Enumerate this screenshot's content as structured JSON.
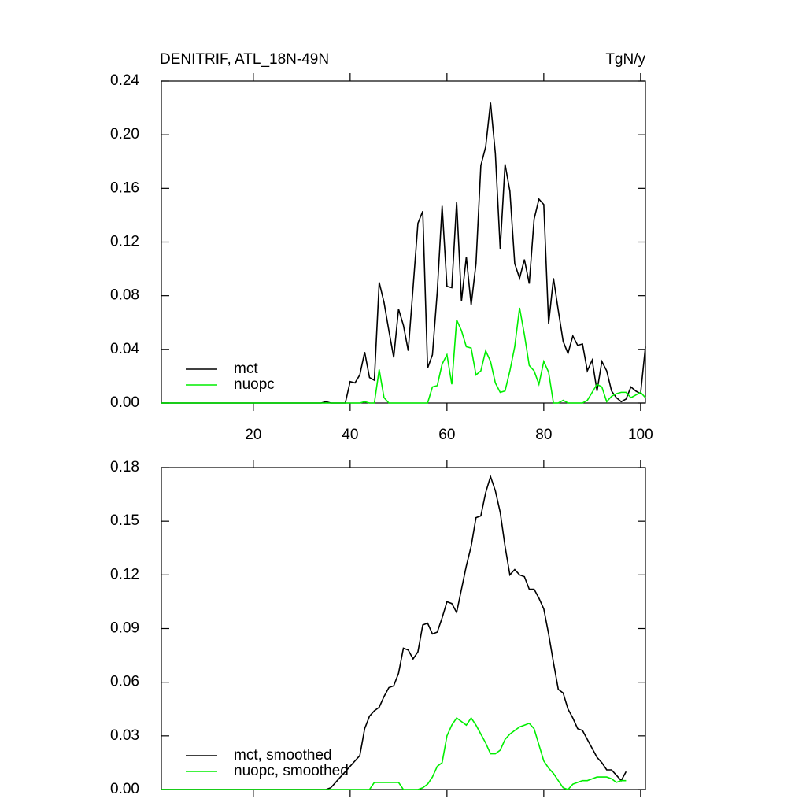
{
  "chart_data": [
    {
      "type": "line",
      "title": "DENITRIF, ATL_18N-49N",
      "units": "TgN/y",
      "x": [
        1,
        2,
        3,
        4,
        5,
        6,
        7,
        8,
        9,
        10,
        11,
        12,
        13,
        14,
        15,
        16,
        17,
        18,
        19,
        20,
        21,
        22,
        23,
        24,
        25,
        26,
        27,
        28,
        29,
        30,
        31,
        32,
        33,
        34,
        35,
        36,
        37,
        38,
        39,
        40,
        41,
        42,
        43,
        44,
        45,
        46,
        47,
        48,
        49,
        50,
        51,
        52,
        53,
        54,
        55,
        56,
        57,
        58,
        59,
        60,
        61,
        62,
        63,
        64,
        65,
        66,
        67,
        68,
        69,
        70,
        71,
        72,
        73,
        74,
        75,
        76,
        77,
        78,
        79,
        80,
        81,
        82,
        83,
        84,
        85,
        86,
        87,
        88,
        89,
        90,
        91,
        92,
        93,
        94,
        95,
        96,
        97,
        98,
        99,
        100,
        101
      ],
      "series": [
        {
          "name": "mct",
          "color": "#000000",
          "values": [
            0,
            0,
            0,
            0,
            0,
            0,
            0,
            0,
            0,
            0,
            0,
            0,
            0,
            0,
            0,
            0,
            0,
            0,
            0,
            0,
            0,
            0,
            0,
            0,
            0,
            0,
            0,
            0,
            0,
            0,
            0,
            0,
            0,
            0,
            0.001,
            0,
            0,
            0,
            0,
            0.016,
            0.015,
            0.021,
            0.038,
            0.019,
            0.017,
            0.09,
            0.075,
            0.054,
            0.034,
            0.07,
            0.058,
            0.039,
            0.086,
            0.134,
            0.143,
            0.026,
            0.036,
            0.083,
            0.147,
            0.087,
            0.086,
            0.15,
            0.076,
            0.109,
            0.073,
            0.104,
            0.177,
            0.191,
            0.224,
            0.186,
            0.115,
            0.178,
            0.158,
            0.104,
            0.093,
            0.107,
            0.089,
            0.137,
            0.152,
            0.148,
            0.059,
            0.093,
            0.069,
            0.046,
            0.037,
            0.05,
            0.043,
            0.044,
            0.024,
            0.032,
            0.009,
            0.031,
            0.024,
            0.009,
            0.004,
            0.001,
            0.003,
            0.012,
            0.009,
            0.007,
            0.042
          ]
        },
        {
          "name": "nuopc",
          "color": "#00ee00",
          "values": [
            0,
            0,
            0,
            0,
            0,
            0,
            0,
            0,
            0,
            0,
            0,
            0,
            0,
            0,
            0,
            0,
            0,
            0,
            0,
            0,
            0,
            0,
            0,
            0,
            0,
            0,
            0,
            0,
            0,
            0,
            0,
            0,
            0,
            0,
            0,
            0,
            0,
            0,
            0,
            0,
            0,
            0,
            0.001,
            0,
            0,
            0.025,
            0.004,
            0,
            0,
            0,
            0,
            0,
            0,
            0,
            0,
            0,
            0.012,
            0.013,
            0.029,
            0.036,
            0.014,
            0.062,
            0.054,
            0.042,
            0.041,
            0.021,
            0.024,
            0.039,
            0.031,
            0.015,
            0.008,
            0.009,
            0.024,
            0.042,
            0.071,
            0.051,
            0.028,
            0.024,
            0.014,
            0.031,
            0.023,
            0,
            0,
            0.002,
            0,
            0,
            0,
            0,
            0.002,
            0.008,
            0.014,
            0.012,
            0.001,
            0.005,
            0.007,
            0.008,
            0.008,
            0.004,
            0.006,
            0.008,
            0.004
          ]
        }
      ],
      "xlim": [
        1,
        101
      ],
      "xticks": [
        20,
        40,
        60,
        80,
        100
      ],
      "ylim": [
        0,
        0.24
      ],
      "yticks": [
        {
          "value": 0,
          "label": "0.00"
        },
        {
          "value": 0.04,
          "label": "0.04"
        },
        {
          "value": 0.08,
          "label": "0.08"
        },
        {
          "value": 0.12,
          "label": "0.12"
        },
        {
          "value": 0.16,
          "label": "0.16"
        },
        {
          "value": 0.2,
          "label": "0.20"
        },
        {
          "value": 0.24,
          "label": "0.24"
        }
      ],
      "legend": "lower left"
    },
    {
      "type": "line",
      "x": [
        1,
        2,
        3,
        4,
        5,
        6,
        7,
        8,
        9,
        10,
        11,
        12,
        13,
        14,
        15,
        16,
        17,
        18,
        19,
        20,
        21,
        22,
        23,
        24,
        25,
        26,
        27,
        28,
        29,
        30,
        31,
        32,
        33,
        34,
        35,
        36,
        37,
        38,
        39,
        40,
        41,
        42,
        43,
        44,
        45,
        46,
        47,
        48,
        49,
        50,
        51,
        52,
        53,
        54,
        55,
        56,
        57,
        58,
        59,
        60,
        61,
        62,
        63,
        64,
        65,
        66,
        67,
        68,
        69,
        70,
        71,
        72,
        73,
        74,
        75,
        76,
        77,
        78,
        79,
        80,
        81,
        82,
        83,
        84,
        85,
        86,
        87,
        88,
        89,
        90,
        91,
        92,
        93,
        94,
        95,
        96,
        97
      ],
      "series": [
        {
          "name": "mct, smoothed",
          "color": "#000000",
          "values": [
            0,
            0,
            0,
            0,
            0,
            0,
            0,
            0,
            0,
            0,
            0,
            0,
            0,
            0,
            0,
            0,
            0,
            0,
            0,
            0,
            0,
            0,
            0,
            0,
            0,
            0,
            0,
            0,
            0,
            0,
            0,
            0,
            0,
            0,
            0,
            0.001,
            0.004,
            0.007,
            0.01,
            0.013,
            0.016,
            0.019,
            0.034,
            0.041,
            0.044,
            0.046,
            0.052,
            0.057,
            0.058,
            0.065,
            0.079,
            0.078,
            0.073,
            0.077,
            0.092,
            0.093,
            0.087,
            0.088,
            0.096,
            0.105,
            0.104,
            0.099,
            0.112,
            0.125,
            0.136,
            0.152,
            0.153,
            0.166,
            0.175,
            0.167,
            0.155,
            0.136,
            0.12,
            0.123,
            0.12,
            0.119,
            0.112,
            0.112,
            0.107,
            0.101,
            0.087,
            0.071,
            0.056,
            0.054,
            0.045,
            0.04,
            0.034,
            0.033,
            0.028,
            0.023,
            0.018,
            0.015,
            0.011,
            0.011,
            0.008,
            0.005,
            0.01
          ]
        },
        {
          "name": "nuopc, smoothed",
          "color": "#00ee00",
          "values": [
            0,
            0,
            0,
            0,
            0,
            0,
            0,
            0,
            0,
            0,
            0,
            0,
            0,
            0,
            0,
            0,
            0,
            0,
            0,
            0,
            0,
            0,
            0,
            0,
            0,
            0,
            0,
            0,
            0,
            0,
            0,
            0,
            0,
            0,
            0,
            0,
            0,
            0,
            0,
            0,
            0,
            0,
            0,
            0,
            0.004,
            0.004,
            0.004,
            0.004,
            0.004,
            0.004,
            0,
            0,
            0,
            0,
            0.001,
            0.003,
            0.007,
            0.013,
            0.015,
            0.03,
            0.036,
            0.04,
            0.038,
            0.036,
            0.04,
            0.036,
            0.031,
            0.026,
            0.02,
            0.02,
            0.022,
            0.028,
            0.031,
            0.033,
            0.035,
            0.036,
            0.037,
            0.034,
            0.025,
            0.016,
            0.012,
            0.009,
            0.005,
            0.001,
            0,
            0.003,
            0.004,
            0.005,
            0.005,
            0.006,
            0.007,
            0.007,
            0.007,
            0.006,
            0.004,
            0.005,
            0.005
          ]
        }
      ],
      "xlim": [
        1,
        101
      ],
      "xticks": [
        20,
        40,
        60,
        80,
        100
      ],
      "ylim": [
        0,
        0.18
      ],
      "yticks": [
        {
          "value": 0,
          "label": "0.00"
        },
        {
          "value": 0.03,
          "label": "0.03"
        },
        {
          "value": 0.06,
          "label": "0.06"
        },
        {
          "value": 0.09,
          "label": "0.09"
        },
        {
          "value": 0.12,
          "label": "0.12"
        },
        {
          "value": 0.15,
          "label": "0.15"
        },
        {
          "value": 0.18,
          "label": "0.18"
        }
      ],
      "legend": "lower left"
    }
  ]
}
